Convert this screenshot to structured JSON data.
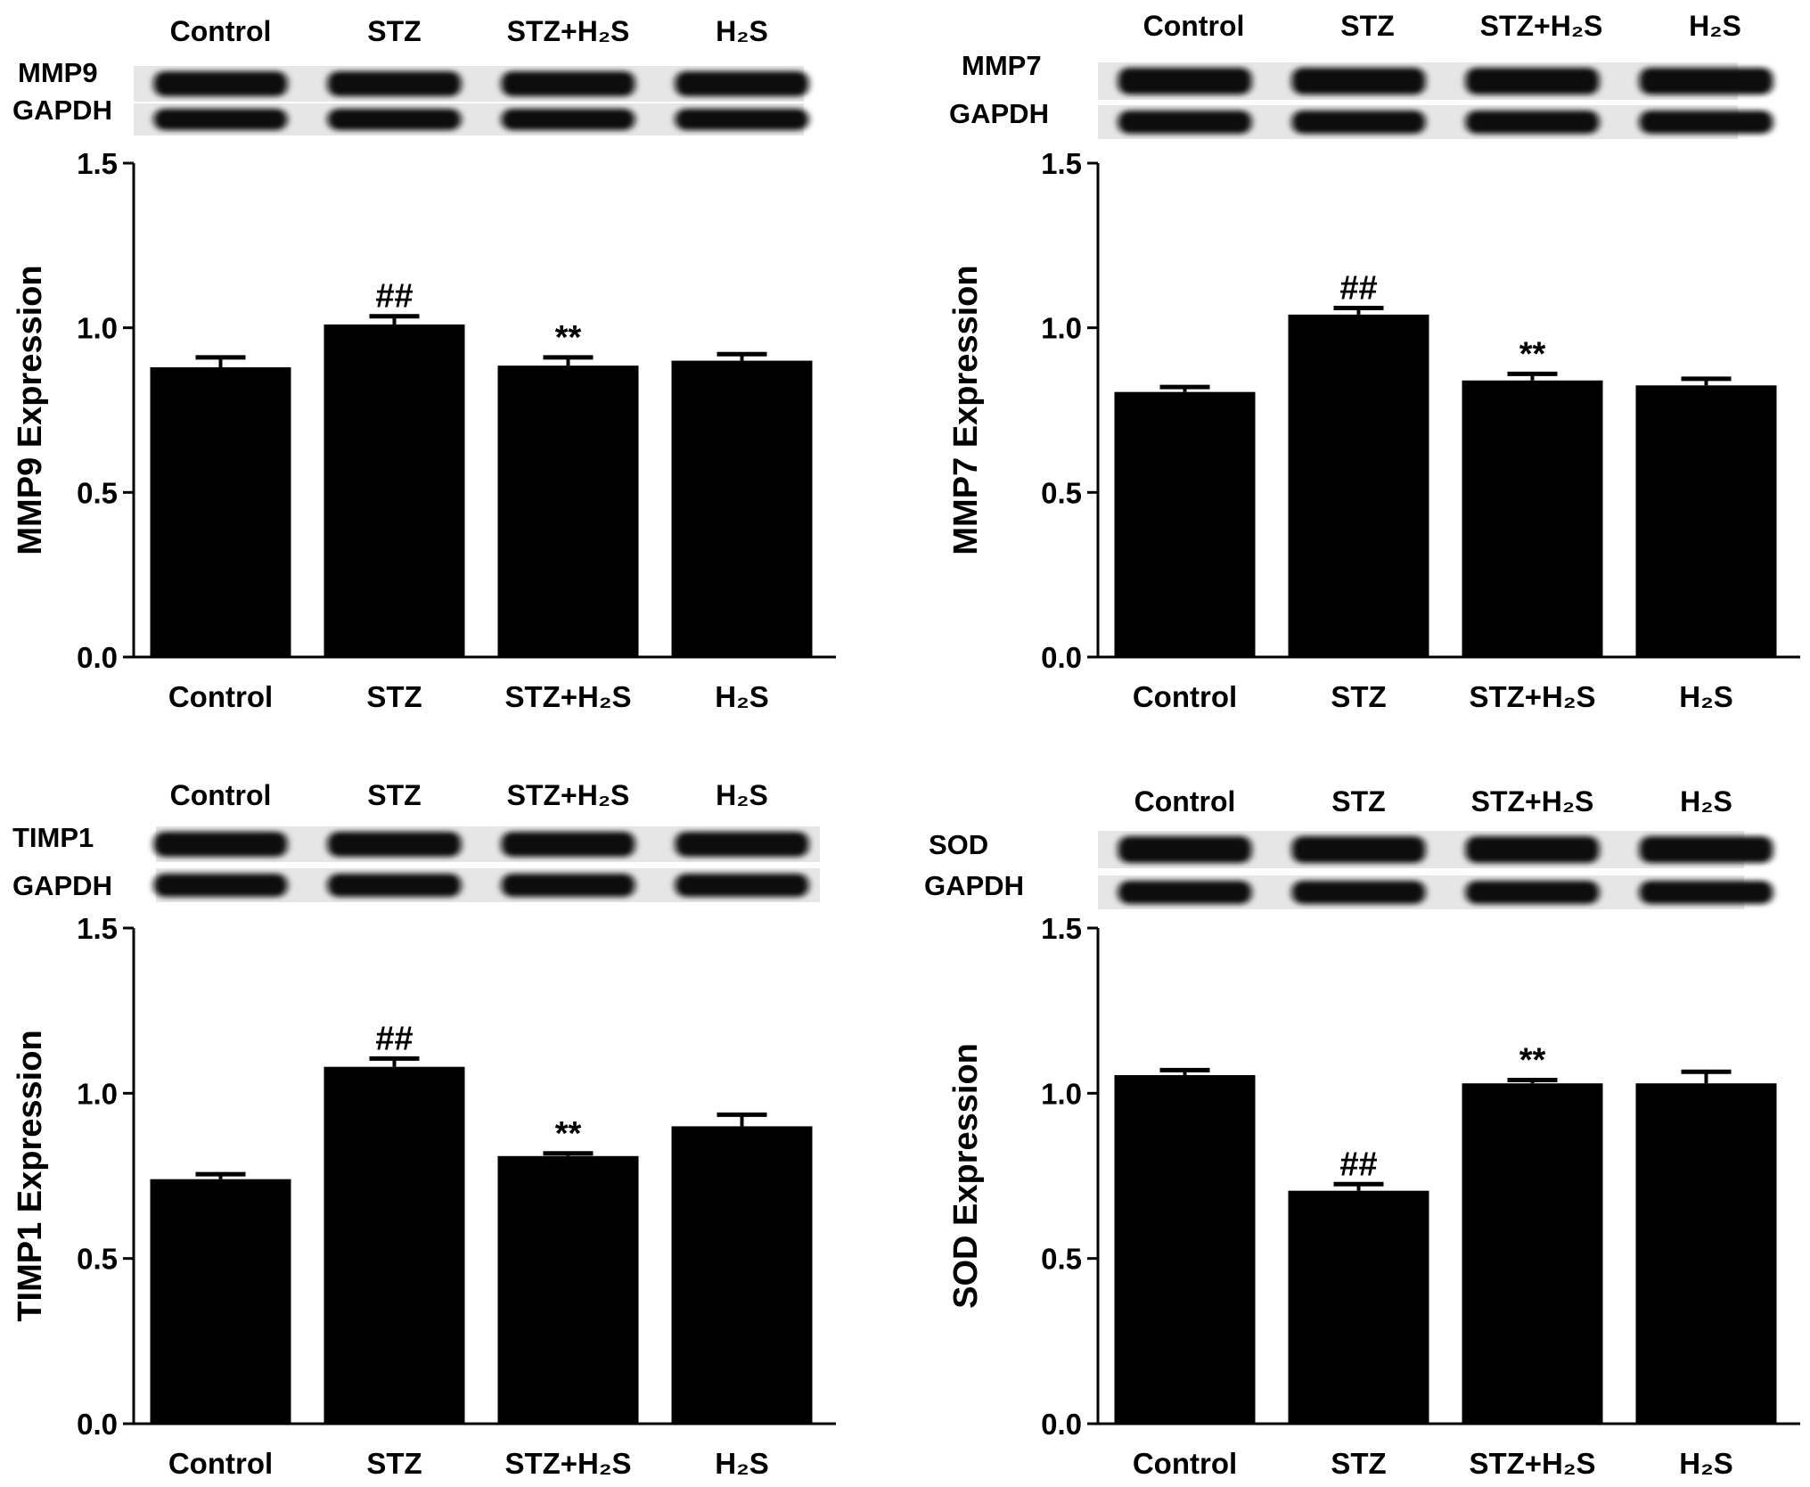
{
  "chart_data": [
    {
      "type": "bar",
      "ylabel": "MMP9 Expression",
      "categories": [
        "Control",
        "STZ",
        "STZ+H₂S",
        "H₂S"
      ],
      "values": [
        0.88,
        1.01,
        0.885,
        0.9
      ],
      "errors": [
        0.03,
        0.025,
        0.025,
        0.02
      ],
      "annotations": [
        "",
        "##",
        "**",
        ""
      ],
      "ylim": [
        0,
        1.5
      ],
      "yticks": [
        "0.0",
        "0.5",
        "1.0",
        "1.5"
      ],
      "blot": {
        "lanes": [
          "Control",
          "STZ",
          "STZ+H₂S",
          "H₂S"
        ],
        "rows": [
          "MMP9",
          "GAPDH"
        ]
      }
    },
    {
      "type": "bar",
      "ylabel": "MMP7 Expression",
      "categories": [
        "Control",
        "STZ",
        "STZ+H₂S",
        "H₂S"
      ],
      "values": [
        0.805,
        1.04,
        0.84,
        0.825
      ],
      "errors": [
        0.015,
        0.02,
        0.02,
        0.02
      ],
      "annotations": [
        "",
        "##",
        "**",
        ""
      ],
      "ylim": [
        0,
        1.5
      ],
      "yticks": [
        "0.0",
        "0.5",
        "1.0",
        "1.5"
      ],
      "blot": {
        "lanes": [
          "Control",
          "STZ",
          "STZ+H₂S",
          "H₂S"
        ],
        "rows": [
          "MMP7",
          "GAPDH"
        ]
      }
    },
    {
      "type": "bar",
      "ylabel": "TIMP1 Expression",
      "categories": [
        "Control",
        "STZ",
        "STZ+H₂S",
        "H₂S"
      ],
      "values": [
        0.74,
        1.08,
        0.81,
        0.9
      ],
      "errors": [
        0.015,
        0.025,
        0.008,
        0.035
      ],
      "annotations": [
        "",
        "##",
        "**",
        ""
      ],
      "ylim": [
        0,
        1.5
      ],
      "yticks": [
        "0.0",
        "0.5",
        "1.0",
        "1.5"
      ],
      "blot": {
        "lanes": [
          "Control",
          "STZ",
          "STZ+H₂S",
          "H₂S"
        ],
        "rows": [
          "TIMP1",
          "GAPDH"
        ]
      }
    },
    {
      "type": "bar",
      "ylabel": "SOD Expression",
      "categories": [
        "Control",
        "STZ",
        "STZ+H₂S",
        "H₂S"
      ],
      "values": [
        1.055,
        0.705,
        1.03,
        1.03
      ],
      "errors": [
        0.015,
        0.02,
        0.01,
        0.035
      ],
      "annotations": [
        "",
        "##",
        "**",
        ""
      ],
      "ylim": [
        0,
        1.5
      ],
      "yticks": [
        "0.0",
        "0.5",
        "1.0",
        "1.5"
      ],
      "blot": {
        "lanes": [
          "Control",
          "STZ",
          "STZ+H₂S",
          "H₂S"
        ],
        "rows": [
          "SOD",
          "GAPDH"
        ]
      }
    }
  ]
}
